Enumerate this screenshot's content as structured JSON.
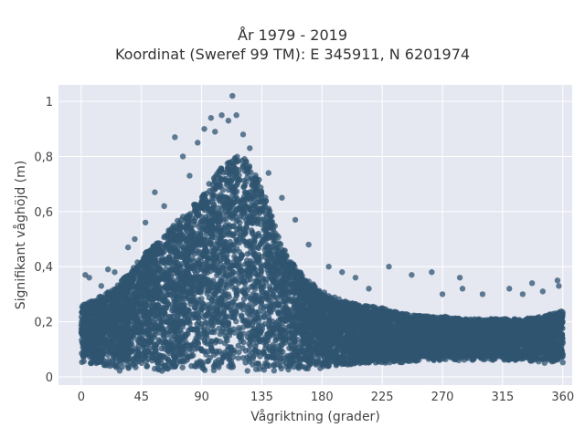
{
  "chart_data": {
    "type": "scatter",
    "title_line1": "År 1979 - 2019",
    "title_line2": "Koordinat (Sweref 99 TM): E 345911, N 6201974",
    "xlabel": "Vågriktning (grader)",
    "ylabel": "Signifikant våghöjd (m)",
    "xlim": [
      -17,
      367
    ],
    "ylim": [
      -0.03,
      1.06
    ],
    "x_ticks": [
      {
        "value": 0,
        "label": "0"
      },
      {
        "value": 45,
        "label": "45"
      },
      {
        "value": 90,
        "label": "90"
      },
      {
        "value": 135,
        "label": "135"
      },
      {
        "value": 180,
        "label": "180"
      },
      {
        "value": 225,
        "label": "225"
      },
      {
        "value": 270,
        "label": "270"
      },
      {
        "value": 315,
        "label": "315"
      },
      {
        "value": 360,
        "label": "360"
      }
    ],
    "y_ticks": [
      {
        "value": 0,
        "label": "0"
      },
      {
        "value": 0.2,
        "label": "0,2"
      },
      {
        "value": 0.4,
        "label": "0,4"
      },
      {
        "value": 0.6,
        "label": "0,6"
      },
      {
        "value": 0.8,
        "label": "0,8"
      },
      {
        "value": 1.0,
        "label": "1"
      }
    ],
    "grid": true,
    "point_color": "#2f5470",
    "background_color": "#e5e8f1",
    "envelope": {
      "x": [
        0,
        10,
        20,
        30,
        40,
        45,
        50,
        60,
        70,
        80,
        90,
        95,
        100,
        105,
        110,
        115,
        120,
        125,
        130,
        135,
        140,
        150,
        160,
        170,
        180,
        190,
        200,
        210,
        225,
        240,
        255,
        270,
        285,
        300,
        315,
        330,
        345,
        360
      ],
      "upper": [
        0.26,
        0.28,
        0.31,
        0.35,
        0.4,
        0.44,
        0.46,
        0.5,
        0.56,
        0.6,
        0.66,
        0.7,
        0.73,
        0.76,
        0.78,
        0.8,
        0.8,
        0.78,
        0.74,
        0.7,
        0.62,
        0.48,
        0.4,
        0.35,
        0.31,
        0.29,
        0.27,
        0.26,
        0.25,
        0.23,
        0.22,
        0.22,
        0.21,
        0.21,
        0.21,
        0.21,
        0.22,
        0.24
      ],
      "lower": [
        0.05,
        0.04,
        0.03,
        0.02,
        0.02,
        0.02,
        0.02,
        0.02,
        0.02,
        0.02,
        0.02,
        0.02,
        0.02,
        0.02,
        0.02,
        0.02,
        0.02,
        0.02,
        0.02,
        0.02,
        0.02,
        0.02,
        0.03,
        0.03,
        0.03,
        0.04,
        0.04,
        0.05,
        0.05,
        0.05,
        0.06,
        0.06,
        0.06,
        0.06,
        0.06,
        0.06,
        0.05,
        0.05
      ]
    },
    "outliers": [
      {
        "x": 113,
        "y": 1.02
      },
      {
        "x": 105,
        "y": 0.95
      },
      {
        "x": 116,
        "y": 0.95
      },
      {
        "x": 97,
        "y": 0.94
      },
      {
        "x": 110,
        "y": 0.93
      },
      {
        "x": 92,
        "y": 0.9
      },
      {
        "x": 100,
        "y": 0.89
      },
      {
        "x": 121,
        "y": 0.88
      },
      {
        "x": 70,
        "y": 0.87
      },
      {
        "x": 87,
        "y": 0.85
      },
      {
        "x": 126,
        "y": 0.83
      },
      {
        "x": 76,
        "y": 0.8
      },
      {
        "x": 140,
        "y": 0.74
      },
      {
        "x": 81,
        "y": 0.73
      },
      {
        "x": 55,
        "y": 0.67
      },
      {
        "x": 150,
        "y": 0.65
      },
      {
        "x": 62,
        "y": 0.62
      },
      {
        "x": 48,
        "y": 0.56
      },
      {
        "x": 160,
        "y": 0.57
      },
      {
        "x": 170,
        "y": 0.48
      },
      {
        "x": 35,
        "y": 0.47
      },
      {
        "x": 40,
        "y": 0.5
      },
      {
        "x": 185,
        "y": 0.4
      },
      {
        "x": 195,
        "y": 0.38
      },
      {
        "x": 205,
        "y": 0.36
      },
      {
        "x": 230,
        "y": 0.4
      },
      {
        "x": 247,
        "y": 0.37
      },
      {
        "x": 262,
        "y": 0.38
      },
      {
        "x": 283,
        "y": 0.36
      },
      {
        "x": 285,
        "y": 0.32
      },
      {
        "x": 300,
        "y": 0.3
      },
      {
        "x": 320,
        "y": 0.32
      },
      {
        "x": 337,
        "y": 0.34
      },
      {
        "x": 356,
        "y": 0.35
      },
      {
        "x": 357,
        "y": 0.33
      },
      {
        "x": 3,
        "y": 0.37
      },
      {
        "x": 6,
        "y": 0.36
      },
      {
        "x": 20,
        "y": 0.39
      },
      {
        "x": 25,
        "y": 0.38
      },
      {
        "x": 15,
        "y": 0.33
      },
      {
        "x": 215,
        "y": 0.32
      },
      {
        "x": 270,
        "y": 0.3
      },
      {
        "x": 330,
        "y": 0.3
      },
      {
        "x": 345,
        "y": 0.31
      }
    ],
    "scatter_sample_size": 9000
  }
}
